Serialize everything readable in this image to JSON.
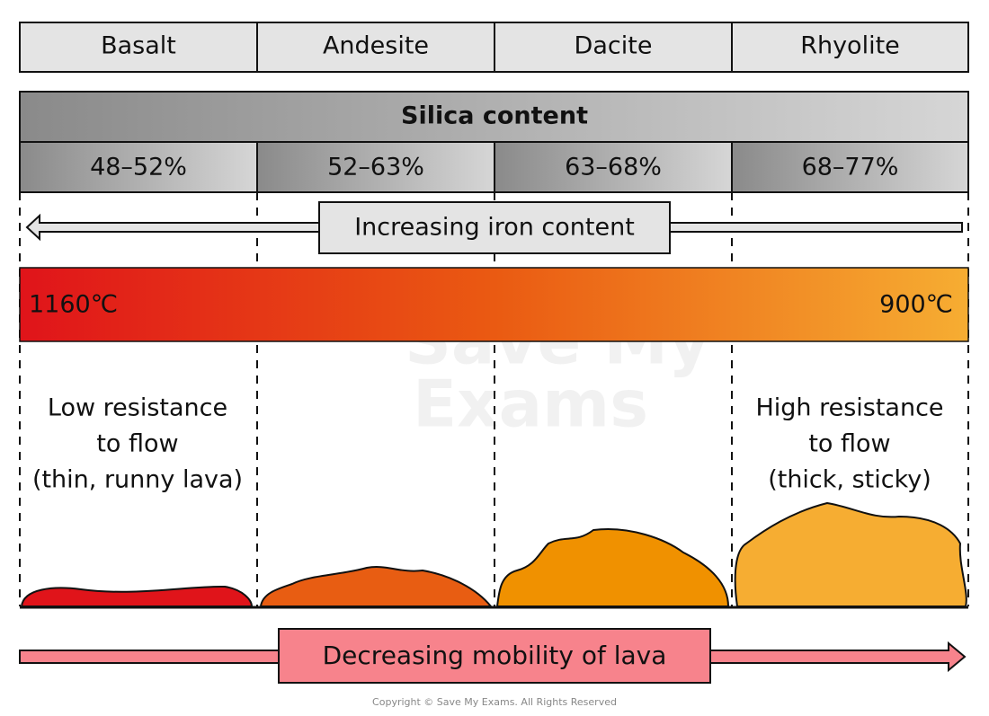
{
  "rock_types": [
    "Basalt",
    "Andesite",
    "Dacite",
    "Rhyolite"
  ],
  "silica": {
    "title": "Silica content",
    "ranges": [
      "48–52%",
      "52–63%",
      "63–68%",
      "68–77%"
    ]
  },
  "iron_arrow": "Increasing iron content",
  "temperature": {
    "left": "1160℃",
    "right": "900℃"
  },
  "descriptions": {
    "left": [
      "Low resistance",
      "to flow",
      "(thin, runny lava)"
    ],
    "right": [
      "High resistance",
      "to flow",
      "(thick, sticky)"
    ]
  },
  "watermark": [
    "Save My",
    "Exams"
  ],
  "mobility_arrow": "Decreasing mobility of lava",
  "copyright": "Copyright © Save My Exams. All Rights Reserved"
}
